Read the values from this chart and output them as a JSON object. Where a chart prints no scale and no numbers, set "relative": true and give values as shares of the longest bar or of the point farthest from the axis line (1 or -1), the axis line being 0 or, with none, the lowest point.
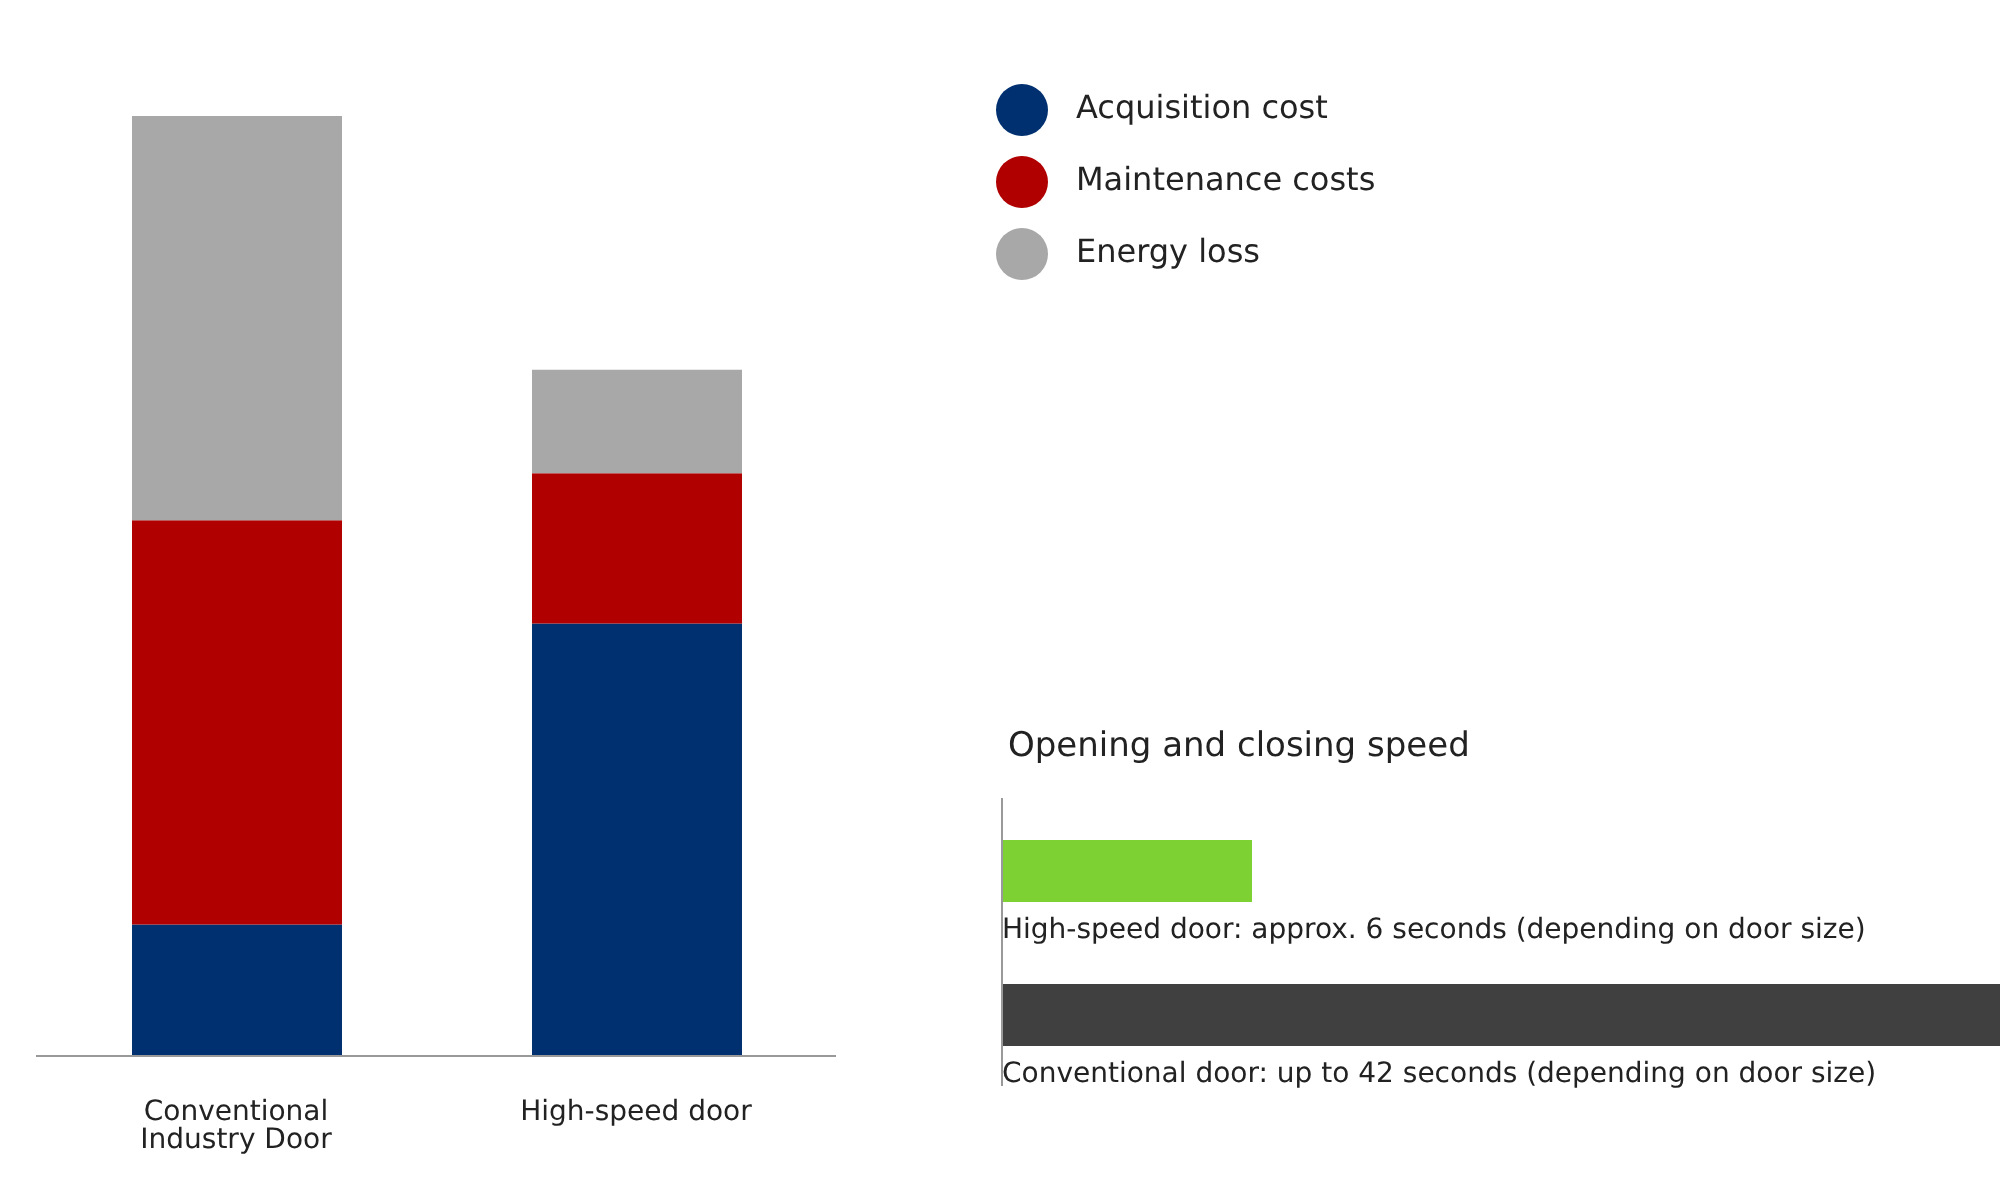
{
  "chart_data": [
    {
      "type": "bar",
      "stacked": true,
      "relative": true,
      "legend": "top right",
      "categories": [
        "Conventional Industry Door",
        "High-speed door"
      ],
      "series": [
        {
          "name": "Acquisition cost",
          "color": "#003070",
          "values": [
            0.14,
            0.46
          ]
        },
        {
          "name": "Maintenance costs",
          "color": "#b00000",
          "values": [
            0.43,
            0.16
          ]
        },
        {
          "name": "Energy loss",
          "color": "#a8a8a8",
          "values": [
            0.43,
            0.11
          ]
        }
      ]
    },
    {
      "type": "bar",
      "orientation": "horizontal",
      "relative": true,
      "title": "Opening and closing speed",
      "categories": [
        "High-speed door: approx. 6 seconds (depending on door size)",
        "Conventional door: up to 42 seconds (depending on door size)"
      ],
      "values": [
        0.25,
        1
      ],
      "colors": [
        "#7ed132",
        "#404040"
      ]
    }
  ]
}
